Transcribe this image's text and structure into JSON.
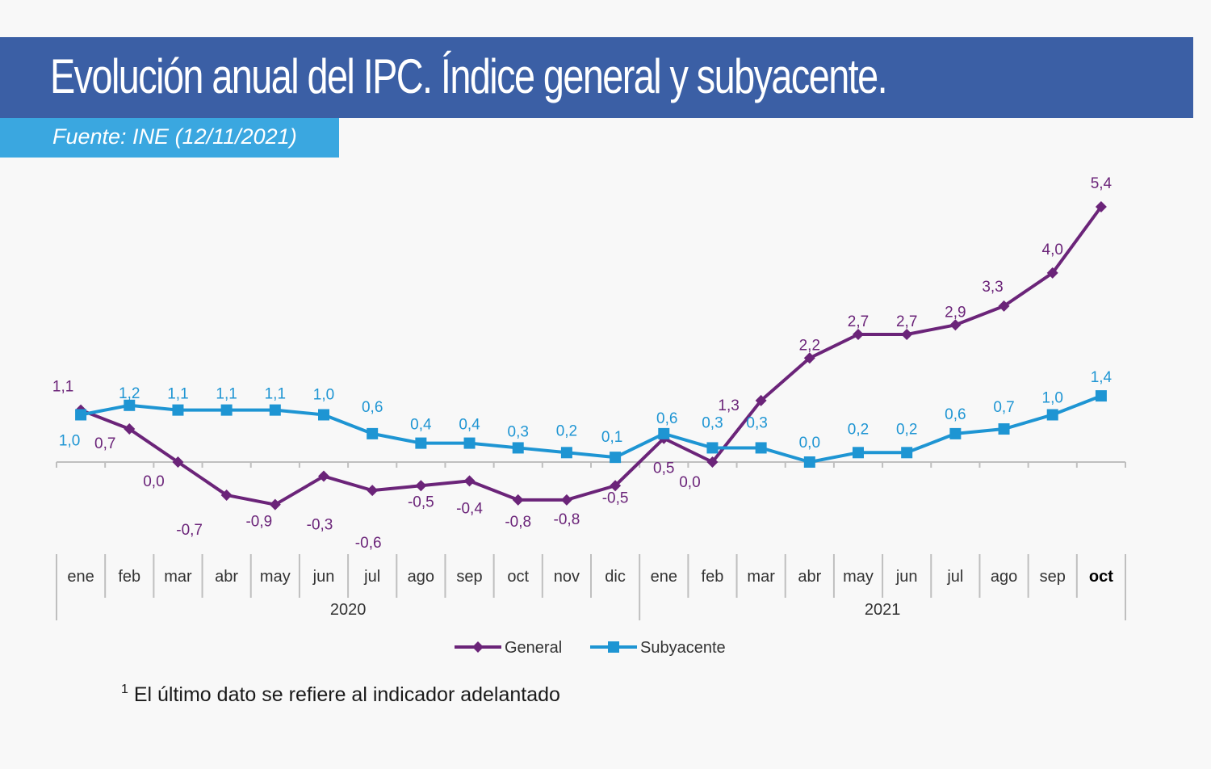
{
  "title": "Evolución anual del IPC. Índice general y subyacente.",
  "source": "Fuente: INE (12/11/2021)",
  "footnote": {
    "marker": "1",
    "text": " El último dato se refiere al indicador adelantado"
  },
  "colors": {
    "title_bar": "#3b5fa5",
    "source_bar": "#3aa7e0",
    "general": "#6b2479",
    "subyacente": "#1e95d3"
  },
  "chart_data": {
    "type": "line",
    "categories": [
      "ene",
      "feb",
      "mar",
      "abr",
      "may",
      "jun",
      "jul",
      "ago",
      "sep",
      "oct",
      "nov",
      "dic",
      "ene",
      "feb",
      "mar",
      "abr",
      "may",
      "jun",
      "jul",
      "ago",
      "sep",
      "oct"
    ],
    "bold_category_index": 21,
    "years": [
      {
        "label": "2020",
        "start": 0,
        "end": 11
      },
      {
        "label": "2021",
        "start": 12,
        "end": 21
      }
    ],
    "series": [
      {
        "name": "General",
        "marker": "diamond",
        "values": [
          1.1,
          0.7,
          0.0,
          -0.7,
          -0.9,
          -0.3,
          -0.6,
          -0.5,
          -0.4,
          -0.8,
          -0.8,
          -0.5,
          0.5,
          0.0,
          1.3,
          2.2,
          2.7,
          2.7,
          2.9,
          3.3,
          4.0,
          5.4
        ],
        "labels": [
          "1,1",
          "0,7",
          "0,0",
          "-0,7",
          "-0,9",
          "-0,3",
          "-0,6",
          "-0,5",
          "-0,4",
          "-0,8",
          "-0,8",
          "-0,5",
          "0,5",
          "0,0",
          "1,3",
          "2,2",
          "2,7",
          "2,7",
          "2,9",
          "3,3",
          "4,0",
          "5,4"
        ]
      },
      {
        "name": "Subyacente",
        "marker": "square",
        "values": [
          1.0,
          1.2,
          1.1,
          1.1,
          1.1,
          1.0,
          0.6,
          0.4,
          0.4,
          0.3,
          0.2,
          0.1,
          0.6,
          0.3,
          0.3,
          0.0,
          0.2,
          0.2,
          0.6,
          0.7,
          1.0,
          1.4
        ],
        "labels": [
          "1,0",
          "1,2",
          "1,1",
          "1,1",
          "1,1",
          "1,0",
          "0,6",
          "0,4",
          "0,4",
          "0,3",
          "0,2",
          "0,1",
          "0,6",
          "0,3",
          "0,3",
          "0,0",
          "0,2",
          "0,2",
          "0,6",
          "0,7",
          "1,0",
          "1,4"
        ]
      }
    ],
    "ylim": [
      -1.5,
      6.0
    ],
    "grid": false,
    "legend": "bottom-center"
  }
}
